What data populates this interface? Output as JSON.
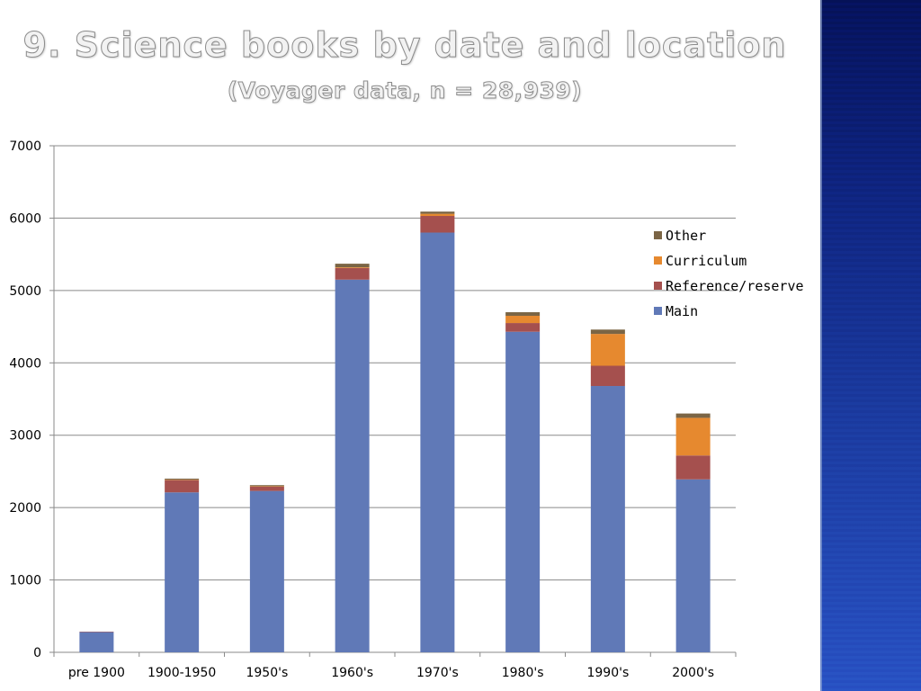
{
  "slide": {
    "title": "9. Science books by date and location",
    "subtitle": "(Voyager data, n = 28,939)"
  },
  "chart_data": {
    "type": "bar",
    "stacked": true,
    "title": "9. Science books by date and location",
    "subtitle": "(Voyager data, n = 28,939)",
    "xlabel": "",
    "ylabel": "",
    "ylim": [
      0,
      7000
    ],
    "yticks": [
      0,
      1000,
      2000,
      3000,
      4000,
      5000,
      6000,
      7000
    ],
    "grid": true,
    "legend_position": "right",
    "categories": [
      "pre 1900",
      "1900-1950",
      "1950's",
      "1960's",
      "1970's",
      "1980's",
      "1990's",
      "2000's"
    ],
    "series": [
      {
        "name": "Main",
        "color": "#6079b7",
        "values": [
          280,
          2210,
          2230,
          5150,
          5800,
          4430,
          3680,
          2390
        ]
      },
      {
        "name": "Reference/reserve",
        "color": "#a5504e",
        "values": [
          5,
          170,
          60,
          160,
          230,
          120,
          280,
          330
        ]
      },
      {
        "name": "Curriculum",
        "color": "#e6892f",
        "values": [
          0,
          5,
          5,
          10,
          30,
          100,
          440,
          520
        ]
      },
      {
        "name": "Other",
        "color": "#7b6545",
        "values": [
          0,
          15,
          15,
          50,
          30,
          50,
          60,
          60
        ]
      }
    ],
    "legend_order": [
      "Other",
      "Curriculum",
      "Reference/reserve",
      "Main"
    ]
  }
}
